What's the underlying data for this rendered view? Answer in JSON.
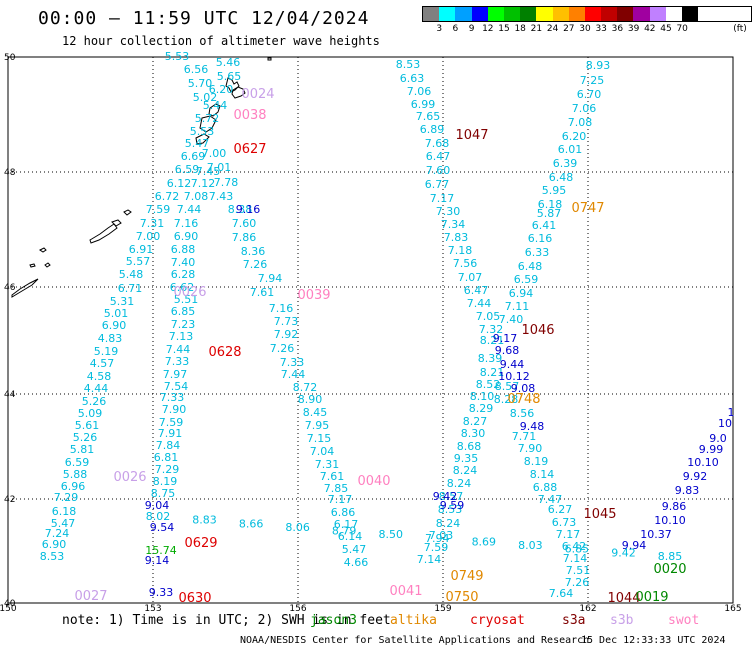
{
  "title": "00:00 – 11:59 UTC 12/04/2024",
  "subtitle": "12 hour collection of altimeter wave heights",
  "legend": {
    "unit": "(ft)",
    "colors": [
      "#808080",
      "#00ffff",
      "#00a0ff",
      "#0000ff",
      "#00ff00",
      "#00c000",
      "#008000",
      "#ffff00",
      "#ffc000",
      "#ff8000",
      "#ff0000",
      "#c00000",
      "#800000",
      "#a000a0",
      "#c080ff",
      "#ffffff",
      "#000000"
    ],
    "labels": [
      "3",
      "6",
      "9",
      "12",
      "15",
      "18",
      "21",
      "24",
      "27",
      "30",
      "33",
      "36",
      "39",
      "42",
      "45",
      "70"
    ]
  },
  "axes": {
    "lon_labels": [
      "150",
      "153",
      "156",
      "159",
      "162",
      "165"
    ],
    "lat_labels": [
      "50",
      "48",
      "46",
      "44",
      "42",
      "40"
    ]
  },
  "tracks": [
    {
      "color": "#00bbdd",
      "points": [
        [
          "5.53"
        ],
        [
          "6.56"
        ],
        [
          "5.46"
        ],
        [
          "5.70"
        ],
        [
          "5.65"
        ],
        [
          "5.02"
        ],
        [
          "5.44"
        ],
        [
          "6.20"
        ],
        [
          "5.72"
        ],
        [
          "5.53"
        ],
        [
          "5.47"
        ],
        [
          "6.69"
        ],
        [
          "6.59"
        ],
        [
          "6.12"
        ],
        [
          "6.72"
        ],
        [
          "7.59"
        ],
        [
          "7.31"
        ],
        [
          "7.00"
        ],
        [
          "6.91"
        ],
        [
          "5.57"
        ],
        [
          "5.48"
        ],
        [
          "6.71"
        ],
        [
          "5.31"
        ],
        [
          "5.01"
        ],
        [
          "6.90"
        ],
        [
          "4.83"
        ],
        [
          "5.19"
        ],
        [
          "4.57"
        ],
        [
          "4.58"
        ],
        [
          "4.44"
        ],
        [
          "5.26"
        ],
        [
          "5.09"
        ],
        [
          "5.61"
        ],
        [
          "5.26"
        ],
        [
          "5.81"
        ],
        [
          "6.59"
        ],
        [
          "5.88"
        ],
        [
          "6.96"
        ],
        [
          "7.29"
        ],
        [
          "6.18"
        ],
        [
          "5.47"
        ],
        [
          "7.24"
        ],
        [
          "6.90"
        ],
        [
          "8.53"
        ]
      ]
    },
    {
      "color": "#00bbdd",
      "points": [
        [
          "7.00"
        ],
        [
          "7.01"
        ],
        [
          "7.45"
        ],
        [
          "7.12"
        ],
        [
          "7.08"
        ],
        [
          "7.44"
        ],
        [
          "7.16"
        ],
        [
          "6.90"
        ],
        [
          "6.88"
        ],
        [
          "7.40"
        ],
        [
          "6.28"
        ],
        [
          "6.62"
        ],
        [
          "5.51"
        ],
        [
          "6.85"
        ],
        [
          "7.23"
        ],
        [
          "7.13"
        ],
        [
          "7.44"
        ],
        [
          "7.33"
        ],
        [
          "7.97"
        ],
        [
          "7.54"
        ],
        [
          "7.33"
        ],
        [
          "7.90"
        ],
        [
          "7.59"
        ],
        [
          "7.91"
        ],
        [
          "7.84"
        ],
        [
          "6.81"
        ],
        [
          "7.29"
        ],
        [
          "8.19"
        ],
        [
          "8.75"
        ]
      ]
    },
    {
      "color": "#00bbdd",
      "points": [
        [
          "7.78"
        ],
        [
          "7.43"
        ],
        [
          "8.38"
        ],
        [
          "7.60"
        ],
        [
          "7.86"
        ],
        [
          "8.36"
        ],
        [
          "7.26"
        ],
        [
          "7.94"
        ],
        [
          "7.61"
        ],
        [
          "7.16"
        ],
        [
          "7.73"
        ],
        [
          "7.92"
        ],
        [
          "7.26"
        ],
        [
          "7.33"
        ],
        [
          "7.44"
        ],
        [
          "8.72"
        ],
        [
          "8.90"
        ],
        [
          "8.45"
        ],
        [
          "7.95"
        ],
        [
          "7.15"
        ],
        [
          "7.04"
        ],
        [
          "7.31"
        ],
        [
          "7.61"
        ],
        [
          "7.85"
        ],
        [
          "7.17"
        ],
        [
          "6.86"
        ],
        [
          "6.17"
        ],
        [
          "6.14"
        ],
        [
          "5.47"
        ],
        [
          "4.66"
        ]
      ]
    },
    {
      "color": "#00bbdd",
      "points": [
        [
          "8.53"
        ],
        [
          "6.63"
        ],
        [
          "7.06"
        ],
        [
          "6.99"
        ],
        [
          "7.65"
        ],
        [
          "6.89"
        ],
        [
          "7.68"
        ],
        [
          "6.47"
        ],
        [
          "7.60"
        ],
        [
          "6.77"
        ],
        [
          "7.17"
        ],
        [
          "7.30"
        ],
        [
          "7.34"
        ],
        [
          "7.83"
        ],
        [
          "7.18"
        ],
        [
          "7.56"
        ],
        [
          "7.07"
        ],
        [
          "6.47"
        ],
        [
          "7.44"
        ],
        [
          "7.05"
        ],
        [
          "7.32"
        ],
        [
          "8.21"
        ],
        [
          "8.39"
        ],
        [
          "8.21"
        ],
        [
          "8.52"
        ],
        [
          "8.10"
        ],
        [
          "8.29"
        ],
        [
          "8.27"
        ],
        [
          "8.30"
        ],
        [
          "8.68"
        ],
        [
          "9.35"
        ],
        [
          "8.24"
        ],
        [
          "8.24"
        ],
        [
          "8.57"
        ],
        [
          "8.53"
        ],
        [
          "8.24"
        ],
        [
          "7.03"
        ],
        [
          "7.59"
        ],
        [
          "7.14"
        ]
      ]
    },
    {
      "color": "#00bbdd",
      "points": [
        [
          "8.93"
        ],
        [
          "7.25"
        ],
        [
          "6.70"
        ],
        [
          "7.06"
        ],
        [
          "7.08"
        ],
        [
          "6.20"
        ],
        [
          "6.01"
        ],
        [
          "6.39"
        ],
        [
          "6.48"
        ],
        [
          "5.95"
        ],
        [
          "6.18"
        ],
        [
          "5.87"
        ],
        [
          "6.41"
        ],
        [
          "6.16"
        ],
        [
          "6.33"
        ],
        [
          "6.48"
        ],
        [
          "6.59"
        ],
        [
          "6.94"
        ],
        [
          "7.11"
        ],
        [
          "7.40"
        ],
        [
          "8.57"
        ],
        [
          "8.28"
        ],
        [
          "8.56"
        ],
        [
          "7.71"
        ],
        [
          "7.90"
        ],
        [
          "8.19"
        ],
        [
          "8.14"
        ],
        [
          "6.88"
        ],
        [
          "7.47"
        ],
        [
          "6.27"
        ],
        [
          "6.73"
        ],
        [
          "7.17"
        ],
        [
          "6.42"
        ],
        [
          "7.14"
        ],
        [
          "7.51"
        ],
        [
          "7.26"
        ],
        [
          "7.64"
        ]
      ]
    },
    {
      "color": "#0000cc",
      "points": [
        [
          "9.16"
        ],
        [
          "9.17"
        ],
        [
          "9.68"
        ],
        [
          "9.44"
        ],
        [
          "10.12"
        ],
        [
          "9.08"
        ],
        [
          "9.48"
        ],
        [
          "9.42"
        ],
        [
          "9.59"
        ],
        [
          "9.04"
        ],
        [
          "9.54"
        ],
        [
          "9.14"
        ],
        [
          "9.33"
        ],
        [
          "9.94"
        ],
        [
          "10.37"
        ],
        [
          "10.10"
        ],
        [
          "9.86"
        ],
        [
          "9.83"
        ],
        [
          "9.92"
        ],
        [
          "10.10"
        ],
        [
          "9.99"
        ],
        [
          "9.0"
        ],
        [
          "10"
        ],
        [
          "1"
        ]
      ]
    },
    {
      "color": "#00bbdd",
      "points": [
        [
          "8.02"
        ],
        [
          "8.83"
        ],
        [
          "8.66"
        ],
        [
          "8.06"
        ],
        [
          "8.79"
        ],
        [
          "8.50"
        ],
        [
          "7.94"
        ],
        [
          "8.69"
        ],
        [
          "8.03"
        ],
        [
          "6.85"
        ],
        [
          "9.42"
        ],
        [
          "8.85"
        ]
      ]
    }
  ],
  "green_labels": [
    [
      "15.74"
    ]
  ],
  "pass_labels": [
    {
      "text": "0024",
      "color": "#c8a0e8"
    },
    {
      "text": "0038",
      "color": "#ff80c0"
    },
    {
      "text": "0627",
      "color": "#dd0000"
    },
    {
      "text": "0747",
      "color": "#e08800"
    },
    {
      "text": "1047",
      "color": "#800000"
    },
    {
      "text": "0039",
      "color": "#ff80c0"
    },
    {
      "text": "0026",
      "color": "#c8a0e8"
    },
    {
      "text": "0628",
      "color": "#dd0000"
    },
    {
      "text": "1046",
      "color": "#800000"
    },
    {
      "text": "0748",
      "color": "#e08800"
    },
    {
      "text": "0026",
      "color": "#c8a0e8"
    },
    {
      "text": "0040",
      "color": "#ff80c0"
    },
    {
      "text": "1045",
      "color": "#800000"
    },
    {
      "text": "0629",
      "color": "#dd0000"
    },
    {
      "text": "0020",
      "color": "#008800"
    },
    {
      "text": "0749",
      "color": "#e08800"
    },
    {
      "text": "0027",
      "color": "#c8a0e8"
    },
    {
      "text": "0630",
      "color": "#dd0000"
    },
    {
      "text": "0041",
      "color": "#ff80c0"
    },
    {
      "text": "0750",
      "color": "#e08800"
    },
    {
      "text": "1044",
      "color": "#800000"
    },
    {
      "text": "0019",
      "color": "#008800"
    }
  ],
  "footer": {
    "note": "note: 1) Time is in UTC; 2) SWH is in feet",
    "satellites": [
      {
        "name": "jason3",
        "color": "#008800"
      },
      {
        "name": "altika",
        "color": "#e08800"
      },
      {
        "name": "cryosat",
        "color": "#dd0000"
      },
      {
        "name": "s3a",
        "color": "#800000"
      },
      {
        "name": "s3b",
        "color": "#c8a0e8"
      },
      {
        "name": "swot",
        "color": "#ff80c0"
      }
    ],
    "credits": "NOAA/NESDIS Center for Satellite Applications and Research",
    "stamp": "15 Dec 12:33:33 UTC 2024"
  }
}
